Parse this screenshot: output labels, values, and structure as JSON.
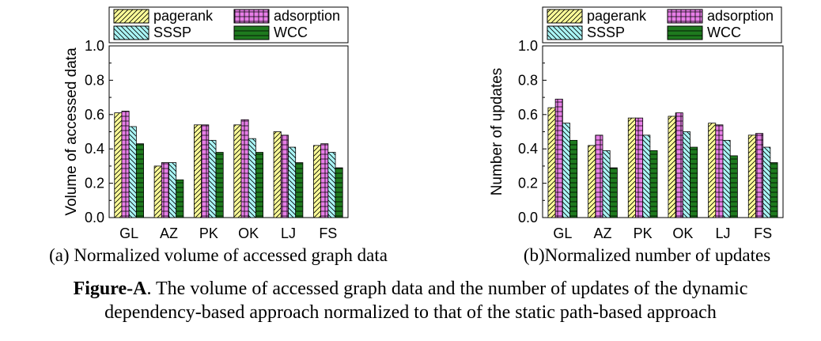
{
  "figure": {
    "caption_bold": "Figure-A",
    "caption_line1_rest": ". The volume of accessed graph data and the number of updates of the dynamic",
    "caption_line2": "dependency-based approach normalized to that of the static path-based approach"
  },
  "series_styles": [
    {
      "name": "pagerank",
      "fill": "#ffff99",
      "pattern": "diag-right"
    },
    {
      "name": "adsorption",
      "fill": "#e77ee7",
      "pattern": "grid"
    },
    {
      "name": "SSSP",
      "fill": "#aaf5f5",
      "pattern": "diag-left"
    },
    {
      "name": "WCC",
      "fill": "#1e7a1e",
      "pattern": "horizontal"
    }
  ],
  "chart_data": [
    {
      "type": "bar",
      "title": "(a) Normalized volume of accessed graph data",
      "xlabel": "",
      "ylabel": "Volume of accessed data",
      "ylim": [
        0,
        1.0
      ],
      "yticks": [
        "0.0",
        "0.2",
        "0.4",
        "0.6",
        "0.8",
        "1.0"
      ],
      "categories": [
        "GL",
        "AZ",
        "PK",
        "OK",
        "LJ",
        "FS"
      ],
      "legend": "top",
      "grid": false,
      "series": [
        {
          "name": "pagerank",
          "values": [
            0.61,
            0.3,
            0.54,
            0.54,
            0.5,
            0.42
          ]
        },
        {
          "name": "adsorption",
          "values": [
            0.62,
            0.32,
            0.54,
            0.57,
            0.48,
            0.43
          ]
        },
        {
          "name": "SSSP",
          "values": [
            0.53,
            0.32,
            0.45,
            0.46,
            0.41,
            0.38
          ]
        },
        {
          "name": "WCC",
          "values": [
            0.43,
            0.22,
            0.38,
            0.38,
            0.32,
            0.29
          ]
        }
      ]
    },
    {
      "type": "bar",
      "title": "(b)Normalized number of updates",
      "xlabel": "",
      "ylabel": "Number of updates",
      "ylim": [
        0,
        1.0
      ],
      "yticks": [
        "0.0",
        "0.2",
        "0.4",
        "0.6",
        "0.8",
        "1.0"
      ],
      "categories": [
        "GL",
        "AZ",
        "PK",
        "OK",
        "LJ",
        "FS"
      ],
      "legend": "top",
      "grid": false,
      "series": [
        {
          "name": "pagerank",
          "values": [
            0.64,
            0.42,
            0.58,
            0.59,
            0.55,
            0.48
          ]
        },
        {
          "name": "adsorption",
          "values": [
            0.69,
            0.48,
            0.58,
            0.61,
            0.54,
            0.49
          ]
        },
        {
          "name": "SSSP",
          "values": [
            0.55,
            0.39,
            0.48,
            0.5,
            0.45,
            0.41
          ]
        },
        {
          "name": "WCC",
          "values": [
            0.45,
            0.29,
            0.39,
            0.41,
            0.36,
            0.32
          ]
        }
      ]
    }
  ]
}
